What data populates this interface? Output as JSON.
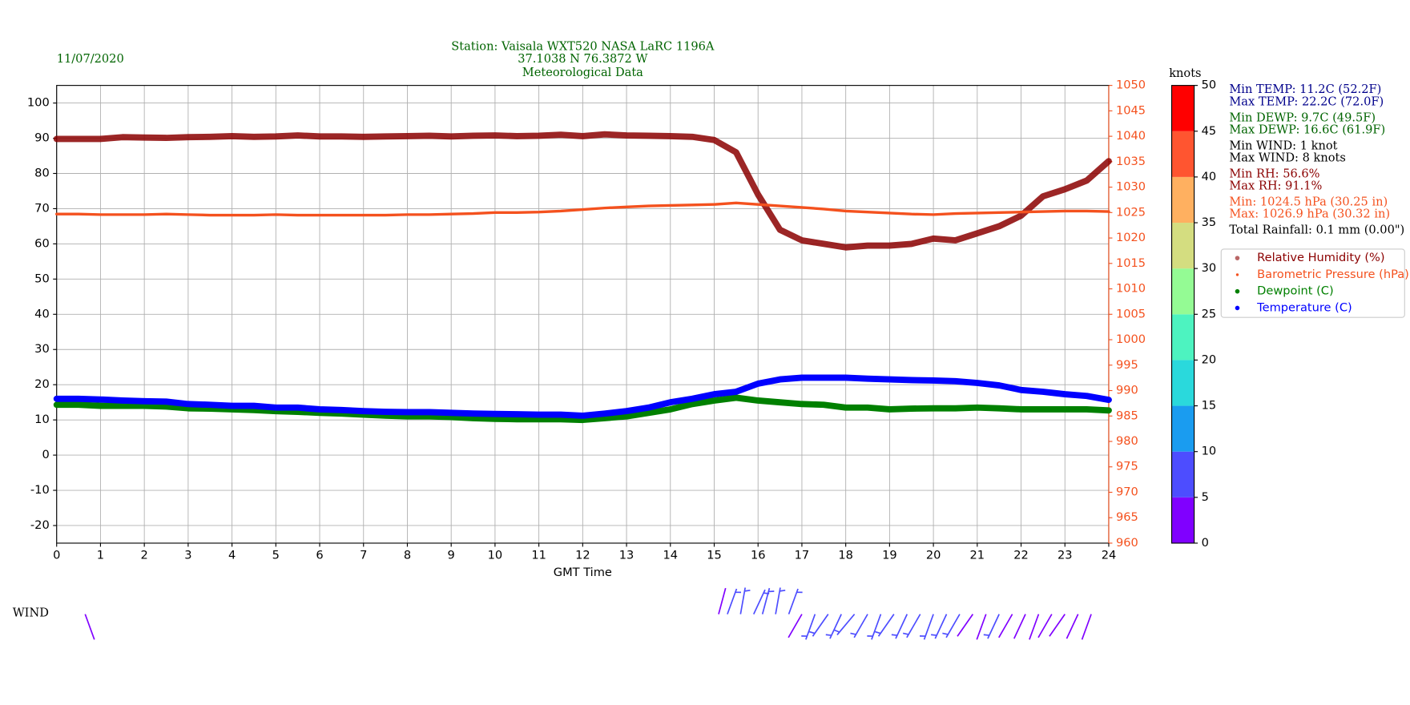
{
  "chart_data": {
    "type": "line",
    "date": "11/07/2020",
    "title": [
      "Station:  Vaisala WXT520  NASA LaRC 1196A",
      "37.1038 N 76.3872 W",
      "Meteorological Data"
    ],
    "title_color": "#006400",
    "xlabel": "GMT Time",
    "x": [
      0,
      0.5,
      1,
      1.5,
      2,
      2.5,
      3,
      3.5,
      4,
      4.5,
      5,
      5.5,
      6,
      6.5,
      7,
      7.5,
      8,
      8.5,
      9,
      9.5,
      10,
      10.5,
      11,
      11.5,
      12,
      12.5,
      13,
      13.5,
      14,
      14.5,
      15,
      15.5,
      16,
      16.5,
      17,
      17.5,
      18,
      18.5,
      19,
      19.5,
      20,
      20.5,
      21,
      21.5,
      22,
      22.5,
      23,
      23.5,
      24
    ],
    "xlim": [
      0,
      24
    ],
    "xticks": [
      0,
      1,
      2,
      3,
      4,
      5,
      6,
      7,
      8,
      9,
      10,
      11,
      12,
      13,
      14,
      15,
      16,
      17,
      18,
      19,
      20,
      21,
      22,
      23,
      24
    ],
    "ylim": [
      -25,
      105
    ],
    "yticks": [
      -20,
      -10,
      0,
      10,
      20,
      30,
      40,
      50,
      60,
      70,
      80,
      90,
      100
    ],
    "y2lim": [
      960,
      1050
    ],
    "y2ticks": [
      960,
      965,
      970,
      975,
      980,
      985,
      990,
      995,
      1000,
      1005,
      1010,
      1015,
      1020,
      1025,
      1030,
      1035,
      1040,
      1045,
      1050
    ],
    "y2color": "#f4511e",
    "grid": true,
    "series": [
      {
        "name": "Relative Humidity (%)",
        "color": "#8b0000",
        "values": [
          89.8,
          89.8,
          89.8,
          90.3,
          90.2,
          90.1,
          90.3,
          90.4,
          90.6,
          90.4,
          90.5,
          90.8,
          90.5,
          90.5,
          90.4,
          90.5,
          90.6,
          90.7,
          90.5,
          90.7,
          90.8,
          90.6,
          90.7,
          91,
          90.6,
          91.1,
          90.8,
          90.7,
          90.6,
          90.4,
          89.5,
          86,
          74,
          64,
          61,
          60,
          59,
          59.5,
          59.5,
          60,
          61.5,
          61,
          63,
          65,
          68,
          73.5,
          75.5,
          78,
          83.5
        ]
      },
      {
        "name": "Barometric Pressure (hPa)",
        "color": "#f4511e",
        "axis": "y2",
        "values": [
          1024.7,
          1024.7,
          1024.6,
          1024.6,
          1024.6,
          1024.7,
          1024.6,
          1024.5,
          1024.5,
          1024.5,
          1024.6,
          1024.5,
          1024.5,
          1024.5,
          1024.5,
          1024.5,
          1024.6,
          1024.6,
          1024.7,
          1024.8,
          1025,
          1025,
          1025.1,
          1025.3,
          1025.6,
          1025.9,
          1026.1,
          1026.3,
          1026.4,
          1026.5,
          1026.6,
          1026.9,
          1026.6,
          1026.3,
          1026,
          1025.7,
          1025.3,
          1025.1,
          1024.9,
          1024.7,
          1024.6,
          1024.8,
          1024.9,
          1025,
          1025.1,
          1025.2,
          1025.3,
          1025.3,
          1025.2
        ]
      },
      {
        "name": "Dewpoint (C)",
        "color": "#008000",
        "values": [
          14.3,
          14.3,
          14,
          14,
          14,
          13.8,
          13.3,
          13.2,
          13,
          12.8,
          12.5,
          12.3,
          12,
          11.8,
          11.5,
          11.2,
          11,
          11,
          10.8,
          10.5,
          10.3,
          10.2,
          10.2,
          10.2,
          10,
          10.5,
          11,
          12,
          13,
          14.5,
          15.5,
          16.3,
          15.5,
          15,
          14.5,
          14.3,
          13.5,
          13.5,
          13,
          13.2,
          13.3,
          13.3,
          13.5,
          13.3,
          13,
          13,
          13,
          13,
          12.7
        ]
      },
      {
        "name": "Temperature (C)",
        "color": "#0000ff",
        "values": [
          16,
          16,
          15.8,
          15.5,
          15.3,
          15.2,
          14.5,
          14.3,
          14,
          14,
          13.5,
          13.5,
          13,
          12.8,
          12.5,
          12.3,
          12.2,
          12.2,
          12,
          11.8,
          11.7,
          11.6,
          11.5,
          11.5,
          11.2,
          11.8,
          12.5,
          13.5,
          15,
          16,
          17.3,
          18,
          20.3,
          21.5,
          22,
          22,
          22,
          21.7,
          21.5,
          21.3,
          21.2,
          21,
          20.5,
          19.8,
          18.5,
          18,
          17.3,
          16.8,
          15.7
        ]
      }
    ],
    "stats": [
      {
        "text": "Min TEMP: 11.2C (52.2F)",
        "color": "#00008b"
      },
      {
        "text": "Max TEMP: 22.2C (72.0F)",
        "color": "#00008b"
      },
      {
        "text": "Min DEWP: 9.7C (49.5F)",
        "color": "#006400"
      },
      {
        "text": "Max DEWP: 16.6C (61.9F)",
        "color": "#006400"
      },
      {
        "text": "Min WIND: 1 knot",
        "color": "#000000"
      },
      {
        "text": "Max WIND: 8 knots",
        "color": "#000000"
      },
      {
        "text": "Min RH: 56.6%",
        "color": "#8b0000"
      },
      {
        "text": "Max RH: 91.1%",
        "color": "#8b0000"
      },
      {
        "text": "Min: 1024.5 hPa (30.25 in)",
        "color": "#f4511e"
      },
      {
        "text": "Max: 1026.9 hPa (30.32 in)",
        "color": "#f4511e"
      },
      {
        "text": "Total Rainfall: 0.1 mm (0.00\")",
        "color": "#000000"
      }
    ],
    "colorbar": {
      "label": "knots",
      "ticks": [
        0,
        5,
        10,
        15,
        20,
        25,
        30,
        35,
        40,
        45,
        50
      ],
      "colors": [
        "#8000ff",
        "#4d4dff",
        "#1a9cf0",
        "#2ad9dc",
        "#4df3c0",
        "#94fb94",
        "#d4dd80",
        "#ffb060",
        "#ff5530",
        "#ff0000"
      ]
    },
    "wind": {
      "label": "WIND",
      "x": [
        0.65,
        15.1,
        15.3,
        15.6,
        15.9,
        16.1,
        16.4,
        16.7,
        17,
        17.3,
        17.6,
        17.9,
        18.2,
        18.5,
        18.8,
        19.1,
        19.4,
        19.7,
        20,
        20.3,
        20.6,
        20.9,
        21.2,
        21.5,
        21.8,
        22.1,
        22.4,
        22.7,
        23,
        23.3,
        23.6
      ],
      "speed": [
        2,
        4,
        5,
        6,
        5,
        7,
        6,
        5,
        4,
        6,
        7,
        5,
        8,
        6,
        5,
        7,
        6,
        5,
        5,
        6,
        5,
        4,
        4,
        5,
        4,
        3,
        4,
        3,
        3,
        4,
        3
      ],
      "direction": [
        160,
        15,
        20,
        10,
        25,
        15,
        10,
        20,
        210,
        200,
        215,
        205,
        220,
        210,
        200,
        215,
        205,
        210,
        200,
        205,
        210,
        215,
        200,
        205,
        210,
        205,
        200,
        210,
        215,
        205,
        200
      ]
    }
  }
}
